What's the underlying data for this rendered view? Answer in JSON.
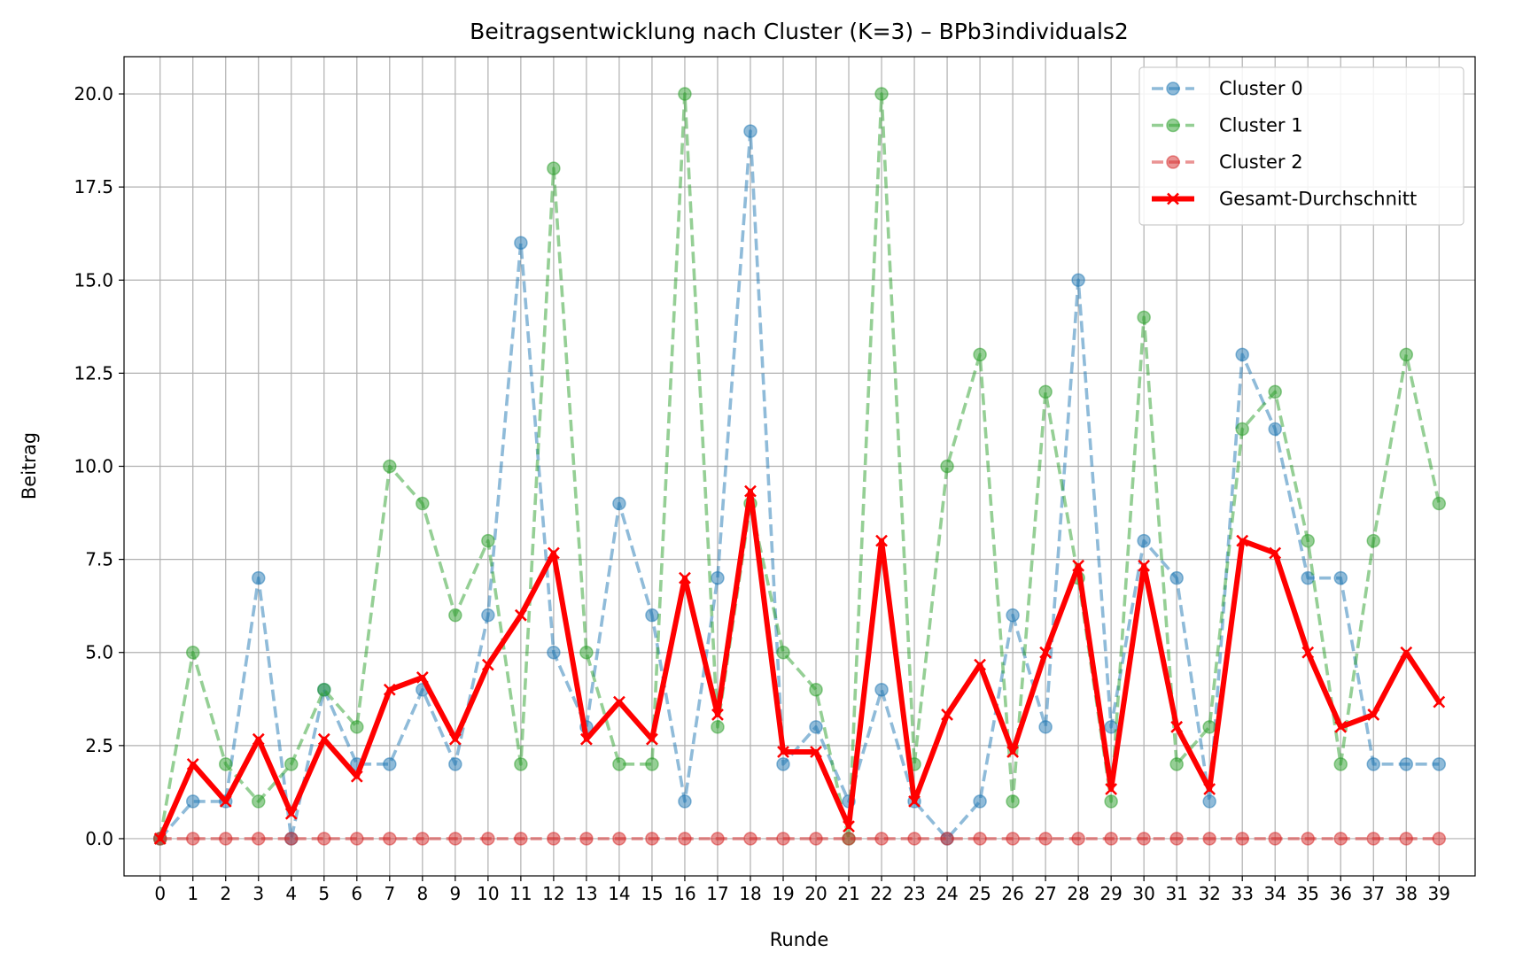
{
  "chart_data": {
    "type": "line",
    "title": "Beitragsentwicklung nach Cluster (K=3) – BPb3individuals2",
    "xlabel": "Runde",
    "ylabel": "Beitrag",
    "xlim": [
      -1.1,
      40.1
    ],
    "ylim": [
      -1.0,
      21.0
    ],
    "x": [
      0,
      1,
      2,
      3,
      4,
      5,
      6,
      7,
      8,
      9,
      10,
      11,
      12,
      13,
      14,
      15,
      16,
      17,
      18,
      19,
      20,
      21,
      22,
      23,
      24,
      25,
      26,
      27,
      28,
      29,
      30,
      31,
      32,
      33,
      34,
      35,
      36,
      37,
      38,
      39
    ],
    "x_tick_labels": [
      "0",
      "1",
      "2",
      "3",
      "4",
      "5",
      "6",
      "7",
      "8",
      "9",
      "10",
      "11",
      "12",
      "13",
      "14",
      "15",
      "16",
      "17",
      "18",
      "19",
      "20",
      "21",
      "22",
      "23",
      "24",
      "25",
      "26",
      "27",
      "28",
      "29",
      "30",
      "31",
      "32",
      "33",
      "34",
      "35",
      "36",
      "37",
      "38",
      "39"
    ],
    "y_ticks": [
      0.0,
      2.5,
      5.0,
      7.5,
      10.0,
      12.5,
      15.0,
      17.5,
      20.0
    ],
    "y_tick_labels": [
      "0.0",
      "2.5",
      "5.0",
      "7.5",
      "10.0",
      "12.5",
      "15.0",
      "17.5",
      "20.0"
    ],
    "grid": true,
    "legend_position": "top-right",
    "series": [
      {
        "name": "Cluster 0",
        "color": "#1f77b4",
        "style": "dashed",
        "marker": "circle",
        "values": [
          0,
          1,
          1,
          7,
          0,
          4,
          2,
          2,
          4,
          2,
          6,
          16,
          5,
          3,
          9,
          6,
          1,
          7,
          19,
          2,
          3,
          1,
          4,
          1,
          0,
          1,
          6,
          3,
          15,
          3,
          8,
          7,
          1,
          13,
          11,
          7,
          7,
          2,
          2,
          2
        ]
      },
      {
        "name": "Cluster 1",
        "color": "#2ca02c",
        "style": "dashed",
        "marker": "circle",
        "values": [
          0,
          5,
          2,
          1,
          2,
          4,
          3,
          10,
          9,
          6,
          8,
          2,
          18,
          5,
          2,
          2,
          20,
          3,
          9,
          5,
          4,
          0,
          20,
          2,
          10,
          13,
          1,
          12,
          7,
          1,
          14,
          2,
          3,
          11,
          12,
          8,
          2,
          8,
          13,
          9
        ]
      },
      {
        "name": "Cluster 2",
        "color": "#d62728",
        "style": "dashed",
        "marker": "circle",
        "values": [
          0,
          0,
          0,
          0,
          0,
          0,
          0,
          0,
          0,
          0,
          0,
          0,
          0,
          0,
          0,
          0,
          0,
          0,
          0,
          0,
          0,
          0,
          0,
          0,
          0,
          0,
          0,
          0,
          0,
          0,
          0,
          0,
          0,
          0,
          0,
          0,
          0,
          0,
          0,
          0
        ]
      },
      {
        "name": "Gesamt-Durchschnitt",
        "color": "#ff0000",
        "style": "solid",
        "marker": "x",
        "values": [
          0,
          2,
          1,
          2.67,
          0.67,
          2.67,
          1.67,
          4,
          4.33,
          2.67,
          4.67,
          6,
          7.67,
          2.67,
          3.67,
          2.67,
          7,
          3.33,
          9.33,
          2.33,
          2.33,
          0.33,
          8,
          1,
          3.33,
          4.67,
          2.33,
          5,
          7.33,
          1.33,
          7.33,
          3,
          1.33,
          8,
          7.67,
          5,
          3,
          3.33,
          5,
          3.67
        ]
      }
    ]
  }
}
